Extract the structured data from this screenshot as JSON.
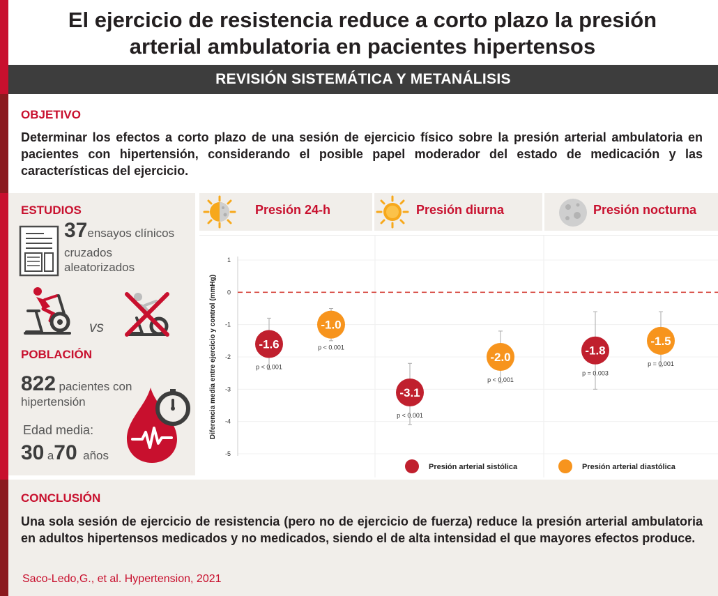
{
  "title": {
    "line1": "El ejercicio de resistencia reduce a corto plazo la presión",
    "line2": "arterial ambulatoria en pacientes hipertensos"
  },
  "subtitle": "REVISIÓN SISTEMÁTICA Y METANÁLISIS",
  "objective": {
    "label": "OBJETIVO",
    "text": "Determinar los efectos a corto plazo de una sesión de ejercicio físico sobre la presión arterial ambulatoria en pacientes con hipertensión, considerando el posible papel moderador del estado de medicación y las características del ejercicio."
  },
  "studies": {
    "label": "ESTUDIOS",
    "count": "37",
    "text_line1": "ensayos clínicos",
    "text_line2": "cruzados",
    "text_line3": "aleatorizados",
    "vs": "vs"
  },
  "population": {
    "label": "POBLACIÓN",
    "count": "822",
    "text_line1": "pacientes con",
    "text_line2": "hipertensión",
    "age_label": "Edad media:",
    "age_min": "30",
    "age_sep": "a",
    "age_max": "70",
    "age_unit": "años"
  },
  "columns": [
    {
      "label": "Presión  24-h",
      "icon": "sun-moon-icon"
    },
    {
      "label": "Presión diurna",
      "icon": "sun-icon"
    },
    {
      "label": "Presión nocturna",
      "icon": "moon-icon"
    }
  ],
  "colors": {
    "systolic": "#c0202e",
    "diastolic": "#f7941d",
    "accent": "#c8102e",
    "band": "#3d3d3d"
  },
  "chart_data": {
    "type": "scatter",
    "ylabel": "Diferencia media entre ejercicio y control (mmHg)",
    "ylim": [
      -5,
      1
    ],
    "yticks": [
      "1",
      "0",
      "-1",
      "-2",
      "-3",
      "-4",
      "-5"
    ],
    "reference_line": 0,
    "categories": [
      "Presión  24-h",
      "Presión diurna",
      "Presión nocturna"
    ],
    "series": [
      {
        "name": "Presión arterial sistólica",
        "color": "#c0202e",
        "values": [
          -1.6,
          -3.1,
          -1.8
        ],
        "labels": [
          "-1.6",
          "-3.1",
          "-1.8"
        ],
        "ci_low": [
          -2.4,
          -4.1,
          -3.0
        ],
        "ci_high": [
          -0.8,
          -2.2,
          -0.6
        ],
        "p_values": [
          "p < 0.001",
          "p < 0.001",
          "p = 0.003"
        ]
      },
      {
        "name": "Presión arterial diastólica",
        "color": "#f7941d",
        "values": [
          -1.0,
          -2.0,
          -1.5
        ],
        "labels": [
          "-1.0",
          "-2.0",
          "-1.5"
        ],
        "ci_low": [
          -1.5,
          -2.8,
          -2.3
        ],
        "ci_high": [
          -0.5,
          -1.2,
          -0.6
        ],
        "p_values": [
          "p < 0.001",
          "p < 0.001",
          "p = 0.001"
        ]
      }
    ],
    "legend_position": "bottom"
  },
  "conclusion": {
    "label": "CONCLUSIÓN",
    "text": "Una sola sesión de ejercicio de resistencia (pero no de ejercicio de fuerza) reduce la presión arterial ambulatoria en adultos hipertensos medicados y no medicados, siendo el de alta intensidad el que mayores efectos produce."
  },
  "citation": "Saco-Ledo,G., et al. Hypertension, 2021"
}
